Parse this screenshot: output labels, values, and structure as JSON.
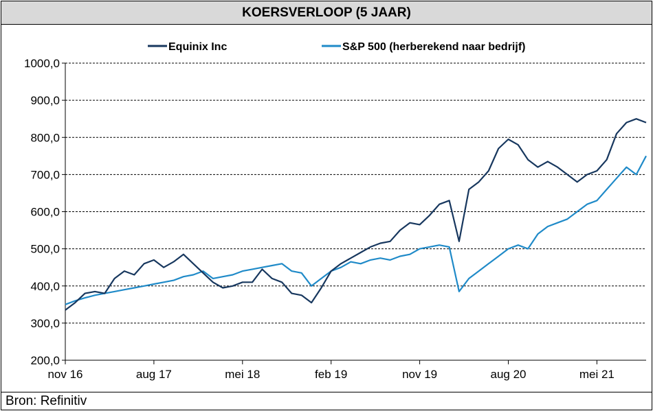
{
  "title": "KOERSVERLOOP (5 JAAR)",
  "footer": "Bron: Refinitiv",
  "chart_data": {
    "type": "line",
    "title": "KOERSVERLOOP (5 JAAR)",
    "ylim": [
      200,
      1000
    ],
    "yticks": [
      200,
      300,
      400,
      500,
      600,
      700,
      800,
      900,
      1000
    ],
    "ytick_labels": [
      "200,0",
      "300,0",
      "400,0",
      "500,0",
      "600,0",
      "700,0",
      "800,0",
      "900,0",
      "1000,0"
    ],
    "xticks": [
      "nov 16",
      "aug 17",
      "mei 18",
      "feb 19",
      "nov 19",
      "aug 20",
      "mei 21"
    ],
    "x_start": "2016-11",
    "x_end": "2021-10",
    "grid": "horizontal dashed",
    "legend_position": "top",
    "series": [
      {
        "name": "Equinix Inc",
        "color": "#17375e",
        "x": [
          "2016-11",
          "2016-12",
          "2017-01",
          "2017-02",
          "2017-03",
          "2017-04",
          "2017-05",
          "2017-06",
          "2017-07",
          "2017-08",
          "2017-09",
          "2017-10",
          "2017-11",
          "2017-12",
          "2018-01",
          "2018-02",
          "2018-03",
          "2018-04",
          "2018-05",
          "2018-06",
          "2018-07",
          "2018-08",
          "2018-09",
          "2018-10",
          "2018-11",
          "2018-12",
          "2019-01",
          "2019-02",
          "2019-03",
          "2019-04",
          "2019-05",
          "2019-06",
          "2019-07",
          "2019-08",
          "2019-09",
          "2019-10",
          "2019-11",
          "2019-12",
          "2020-01",
          "2020-02",
          "2020-03",
          "2020-04",
          "2020-05",
          "2020-06",
          "2020-07",
          "2020-08",
          "2020-09",
          "2020-10",
          "2020-11",
          "2020-12",
          "2021-01",
          "2021-02",
          "2021-03",
          "2021-04",
          "2021-05",
          "2021-06",
          "2021-07",
          "2021-08",
          "2021-09",
          "2021-10"
        ],
        "values": [
          335,
          355,
          380,
          385,
          380,
          420,
          440,
          430,
          460,
          470,
          450,
          465,
          485,
          460,
          435,
          410,
          395,
          400,
          410,
          410,
          445,
          420,
          410,
          380,
          375,
          355,
          395,
          440,
          460,
          475,
          490,
          505,
          515,
          520,
          550,
          570,
          565,
          590,
          620,
          630,
          520,
          660,
          680,
          710,
          770,
          795,
          780,
          740,
          720,
          735,
          720,
          700,
          680,
          700,
          710,
          740,
          810,
          840,
          850,
          840
        ],
        "note": "solid dark navy line"
      },
      {
        "name": "S&P 500 (herberekend naar bedrijf)",
        "color": "#1f8ac8",
        "x": [
          "2016-11",
          "2016-12",
          "2017-01",
          "2017-02",
          "2017-03",
          "2017-04",
          "2017-05",
          "2017-06",
          "2017-07",
          "2017-08",
          "2017-09",
          "2017-10",
          "2017-11",
          "2017-12",
          "2018-01",
          "2018-02",
          "2018-03",
          "2018-04",
          "2018-05",
          "2018-06",
          "2018-07",
          "2018-08",
          "2018-09",
          "2018-10",
          "2018-11",
          "2018-12",
          "2019-01",
          "2019-02",
          "2019-03",
          "2019-04",
          "2019-05",
          "2019-06",
          "2019-07",
          "2019-08",
          "2019-09",
          "2019-10",
          "2019-11",
          "2019-12",
          "2020-01",
          "2020-02",
          "2020-03",
          "2020-04",
          "2020-05",
          "2020-06",
          "2020-07",
          "2020-08",
          "2020-09",
          "2020-10",
          "2020-11",
          "2020-12",
          "2021-01",
          "2021-02",
          "2021-03",
          "2021-04",
          "2021-05",
          "2021-06",
          "2021-07",
          "2021-08",
          "2021-09",
          "2021-10"
        ],
        "values": [
          350,
          360,
          368,
          375,
          380,
          385,
          390,
          395,
          400,
          405,
          410,
          415,
          425,
          430,
          440,
          420,
          425,
          430,
          440,
          445,
          450,
          455,
          460,
          440,
          435,
          400,
          420,
          440,
          450,
          465,
          460,
          470,
          475,
          470,
          480,
          485,
          500,
          505,
          510,
          505,
          385,
          420,
          440,
          460,
          480,
          500,
          510,
          500,
          540,
          560,
          570,
          580,
          600,
          620,
          630,
          660,
          690,
          720,
          700,
          750
        ],
        "note": "solid light blue line"
      }
    ]
  }
}
